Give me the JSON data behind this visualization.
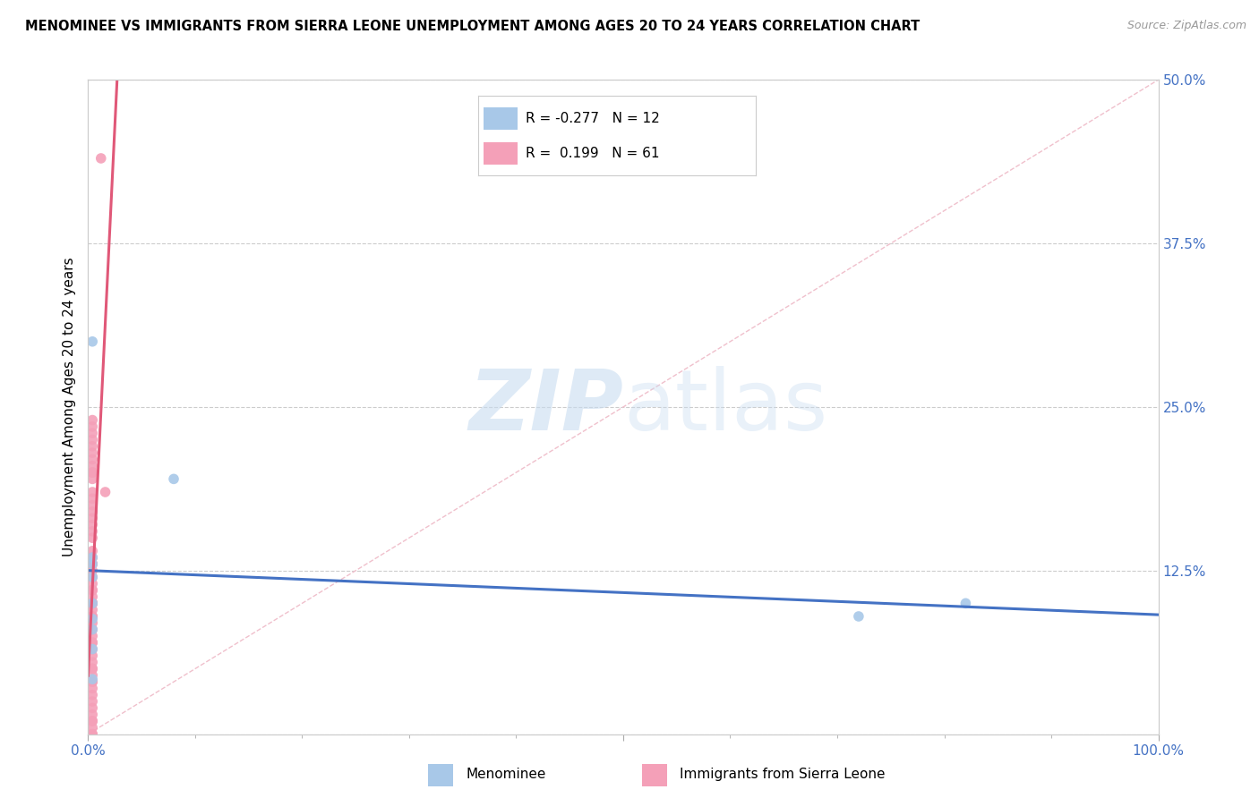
{
  "title": "MENOMINEE VS IMMIGRANTS FROM SIERRA LEONE UNEMPLOYMENT AMONG AGES 20 TO 24 YEARS CORRELATION CHART",
  "source": "Source: ZipAtlas.com",
  "ylabel": "Unemployment Among Ages 20 to 24 years",
  "xlim": [
    0.0,
    1.0
  ],
  "ylim": [
    0.0,
    0.5
  ],
  "menominee_x": [
    0.004,
    0.004,
    0.08,
    0.004,
    0.004,
    0.004,
    0.004,
    0.004,
    0.004,
    0.72,
    0.82,
    0.004
  ],
  "menominee_y": [
    0.3,
    0.135,
    0.195,
    0.13,
    0.12,
    0.1,
    0.088,
    0.08,
    0.065,
    0.09,
    0.1,
    0.042
  ],
  "sierra_leone_x": [
    0.012,
    0.004,
    0.004,
    0.004,
    0.004,
    0.004,
    0.004,
    0.004,
    0.004,
    0.004,
    0.004,
    0.004,
    0.004,
    0.004,
    0.004,
    0.004,
    0.004,
    0.004,
    0.004,
    0.004,
    0.004,
    0.004,
    0.004,
    0.004,
    0.004,
    0.004,
    0.004,
    0.004,
    0.004,
    0.004,
    0.004,
    0.004,
    0.004,
    0.004,
    0.004,
    0.004,
    0.004,
    0.004,
    0.004,
    0.004,
    0.004,
    0.004,
    0.004,
    0.004,
    0.004,
    0.004,
    0.004,
    0.004,
    0.004,
    0.004,
    0.004,
    0.004,
    0.004,
    0.004,
    0.004,
    0.004,
    0.004,
    0.004,
    0.004,
    0.004,
    0.016
  ],
  "sierra_leone_y": [
    0.44,
    0.24,
    0.235,
    0.23,
    0.225,
    0.22,
    0.215,
    0.21,
    0.205,
    0.2,
    0.2,
    0.195,
    0.185,
    0.18,
    0.175,
    0.17,
    0.165,
    0.16,
    0.155,
    0.15,
    0.14,
    0.135,
    0.13,
    0.13,
    0.125,
    0.12,
    0.115,
    0.11,
    0.11,
    0.105,
    0.1,
    0.1,
    0.1,
    0.1,
    0.095,
    0.09,
    0.09,
    0.085,
    0.08,
    0.075,
    0.07,
    0.07,
    0.065,
    0.06,
    0.055,
    0.05,
    0.05,
    0.045,
    0.04,
    0.04,
    0.035,
    0.03,
    0.025,
    0.02,
    0.015,
    0.01,
    0.01,
    0.005,
    0.0,
    0.0,
    0.185
  ],
  "menominee_color": "#A8C8E8",
  "sierra_leone_color": "#F4A0B8",
  "menominee_line_color": "#4472C4",
  "sierra_leone_line_color": "#E05878",
  "diagonal_color": "#F0C0CC",
  "R_menominee": -0.277,
  "N_menominee": 12,
  "R_sierra_leone": 0.199,
  "N_sierra_leone": 61,
  "legend_menominee": "Menominee",
  "legend_sierra_leone": "Immigrants from Sierra Leone",
  "marker_size": 70,
  "y_ticks": [
    0.0,
    0.125,
    0.25,
    0.375,
    0.5
  ],
  "x_ticks": [
    0.0,
    0.1,
    0.2,
    0.3,
    0.4,
    0.5,
    0.6,
    0.7,
    0.8,
    0.9,
    1.0
  ]
}
